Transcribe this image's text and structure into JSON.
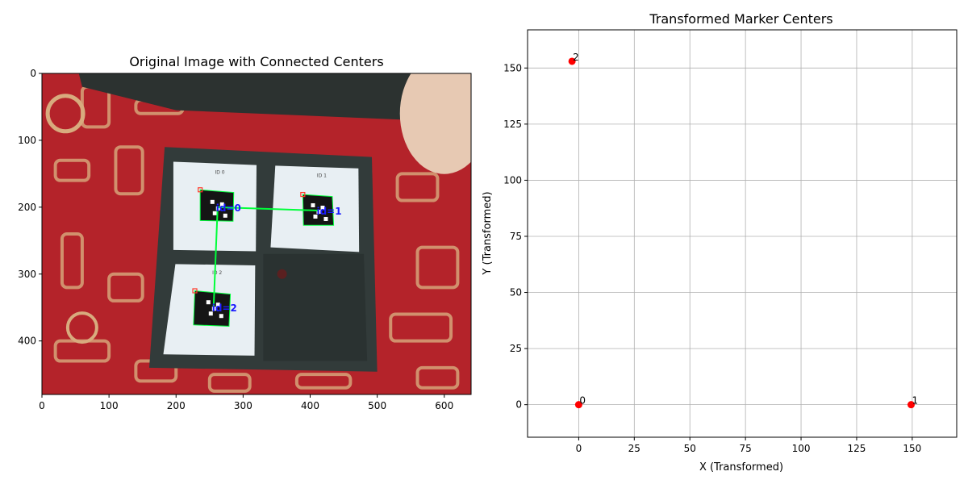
{
  "chart_data": [
    {
      "type": "image",
      "title": "Original Image with Connected Centers",
      "xlim": [
        0,
        640
      ],
      "ylim": [
        480,
        0
      ],
      "xticks": [
        0,
        100,
        200,
        300,
        400,
        500,
        600
      ],
      "yticks": [
        0,
        100,
        200,
        300,
        400
      ],
      "grid": false,
      "colors": {
        "background_red": "#b4232a",
        "pattern_gold": "#d8ab7e",
        "box_frame": "#323b3a",
        "paper": "#e8eff3",
        "marker_black": "#151515",
        "connect_line": "#00ff3a",
        "label_blue": "#1a1aff",
        "corner_red": "#ff3a2a"
      },
      "markers": [
        {
          "id": 0,
          "label": "id=0",
          "center": [
            262,
            200
          ],
          "corners": [
            [
              236,
              174
            ],
            [
              286,
              178
            ],
            [
              285,
              221
            ],
            [
              236,
              220
            ]
          ]
        },
        {
          "id": 1,
          "label": "id=1",
          "center": [
            412,
            205
          ],
          "corners": [
            [
              389,
              181
            ],
            [
              433,
              184
            ],
            [
              435,
              227
            ],
            [
              390,
              227
            ]
          ]
        },
        {
          "id": 2,
          "label": "id=2",
          "center": [
            256,
            350
          ],
          "corners": [
            [
              228,
              325
            ],
            [
              281,
              330
            ],
            [
              279,
              378
            ],
            [
              226,
              376
            ]
          ]
        }
      ],
      "connections": [
        [
          0,
          1
        ],
        [
          0,
          2
        ]
      ],
      "paper_labels": [
        "ID 0",
        "ID 1",
        "ID 2"
      ]
    },
    {
      "type": "scatter",
      "title": "Transformed Marker Centers",
      "xlabel": "X (Transformed)",
      "ylabel": "Y (Transformed)",
      "xlim": [
        -23,
        170
      ],
      "ylim": [
        -14.5,
        167
      ],
      "xticks": [
        0,
        25,
        50,
        75,
        100,
        125,
        150
      ],
      "yticks": [
        0,
        25,
        50,
        75,
        100,
        125,
        150
      ],
      "grid": true,
      "point_color": "#ff0000",
      "points": [
        {
          "label": "0",
          "x": 0,
          "y": 0
        },
        {
          "label": "1",
          "x": 149.5,
          "y": 0
        },
        {
          "label": "2",
          "x": -3,
          "y": 153
        }
      ]
    }
  ]
}
